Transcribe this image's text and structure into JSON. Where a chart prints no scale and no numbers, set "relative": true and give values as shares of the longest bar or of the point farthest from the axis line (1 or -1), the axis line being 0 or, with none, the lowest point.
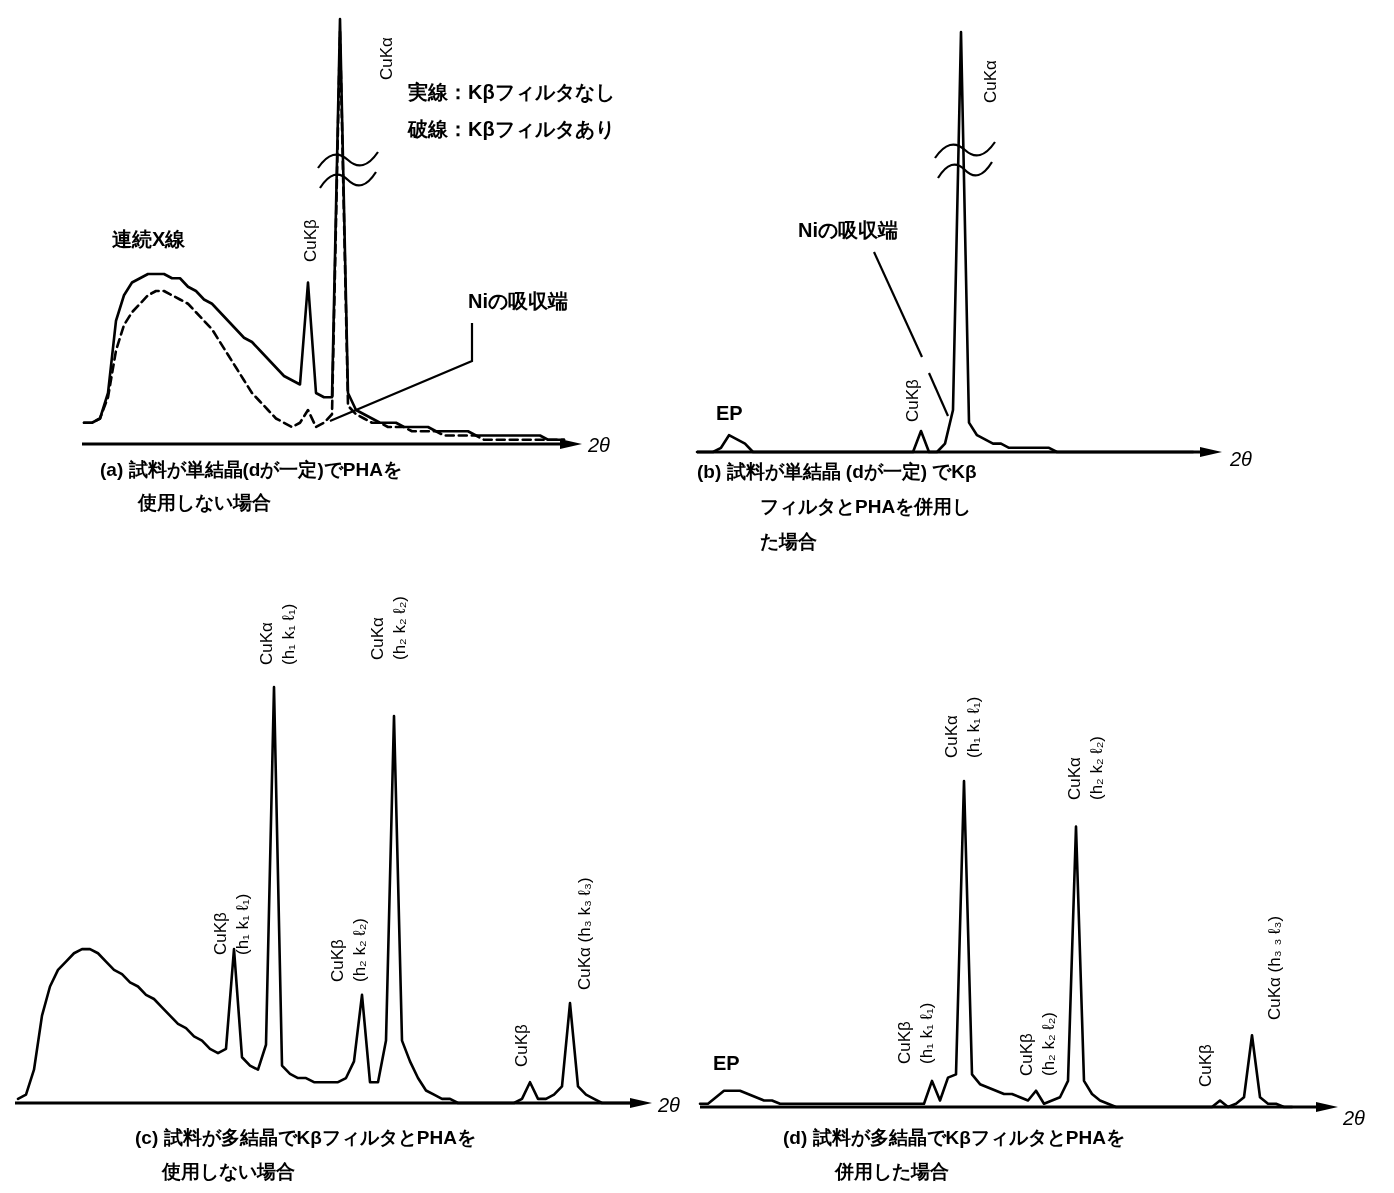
{
  "chart_data": [
    {
      "type": "line",
      "title": "(a) 試料が単結晶(dが一定)でPHAを使用しない場合",
      "xlabel": "2θ",
      "relative": true,
      "categories": [
        null,
        null,
        null,
        null,
        null,
        null,
        null,
        null,
        null,
        null,
        null,
        null,
        null,
        null,
        null,
        null,
        null,
        null,
        null,
        null,
        null,
        null,
        null,
        null,
        null,
        null,
        null,
        null,
        null,
        null,
        null,
        null,
        null,
        null,
        null,
        null,
        null,
        null,
        null,
        null,
        null,
        null,
        null,
        null,
        null,
        null,
        null,
        null,
        null,
        null,
        null,
        null,
        null,
        null,
        null,
        null,
        null,
        null,
        null,
        null,
        null
      ],
      "series": [
        {
          "color": "#000000",
          "line_style": "solid",
          "values": [
            0.05,
            0.05,
            0.06,
            0.12,
            0.29,
            0.35,
            0.38,
            0.39,
            0.4,
            0.4,
            0.4,
            0.39,
            0.39,
            0.37,
            0.36,
            0.34,
            0.33,
            0.31,
            0.29,
            0.27,
            0.25,
            0.24,
            0.22,
            0.2,
            0.18,
            0.16,
            0.15,
            0.14,
            0.38,
            0.12,
            0.11,
            0.11,
            1,
            0.12,
            0.08,
            0.07,
            0.06,
            0.05,
            0.05,
            0.05,
            0.04,
            0.04,
            0.04,
            0.04,
            0.03,
            0.03,
            0.03,
            0.03,
            0.03,
            0.02,
            0.02,
            0.02,
            0.02,
            0.02,
            0.02,
            0.02,
            0.02,
            0.02,
            0.01,
            0.01,
            0.01
          ]
        },
        {
          "color": "#000000",
          "line_style": "dashed",
          "values": [
            0.05,
            0.05,
            0.06,
            0.11,
            0.22,
            0.28,
            0.31,
            0.33,
            0.35,
            0.36,
            0.36,
            0.35,
            0.34,
            0.33,
            0.31,
            0.29,
            0.27,
            0.24,
            0.21,
            0.18,
            0.15,
            0.12,
            0.1,
            0.08,
            0.06,
            0.05,
            0.04,
            0.05,
            0.08,
            0.04,
            0.05,
            0.07,
            0.97,
            0.09,
            0.07,
            0.06,
            0.05,
            0.05,
            0.04,
            0.04,
            0.04,
            0.03,
            0.03,
            0.03,
            0.03,
            0.02,
            0.02,
            0.02,
            0.02,
            0.02,
            0.01,
            0.01,
            0.01,
            0.01,
            0.01,
            0.01,
            0.01,
            0.01,
            0.01,
            0.01,
            0.01
          ]
        }
      ],
      "annotations": [
        "CuKα",
        "CuKβ",
        "連続X線",
        "Niの吸収端",
        "実線：Kβフィルタなし",
        "破線：Kβフィルタあり"
      ]
    },
    {
      "type": "line",
      "title": "(b) 試料が単結晶 (dが一定) でKβフィルタとPHAを併用した場合",
      "xlabel": "2θ",
      "relative": true,
      "categories": [
        null,
        null,
        null,
        null,
        null,
        null,
        null,
        null,
        null,
        null,
        null,
        null,
        null,
        null,
        null,
        null,
        null,
        null,
        null,
        null,
        null,
        null,
        null,
        null,
        null,
        null,
        null,
        null,
        null,
        null,
        null,
        null,
        null,
        null,
        null,
        null,
        null,
        null,
        null,
        null,
        null,
        null,
        null,
        null,
        null,
        null,
        null,
        null,
        null,
        null,
        null,
        null,
        null,
        null,
        null,
        null,
        null,
        null,
        null,
        null,
        null,
        null,
        null
      ],
      "series": [
        {
          "color": "#000000",
          "line_style": "solid",
          "values": [
            0,
            0,
            0,
            0.01,
            0.04,
            0.03,
            0.02,
            0,
            0,
            0,
            0,
            0,
            0,
            0,
            0,
            0,
            0,
            0,
            0,
            0,
            0,
            0,
            0,
            0,
            0,
            0,
            0,
            0,
            0.05,
            0,
            0,
            0.02,
            0.1,
            1,
            0.07,
            0.04,
            0.03,
            0.02,
            0.02,
            0.01,
            0.01,
            0.01,
            0.01,
            0.01,
            0.01,
            0,
            0,
            0,
            0,
            0,
            0,
            0,
            0,
            0,
            0,
            0,
            0,
            0,
            0,
            0,
            0,
            0,
            0
          ]
        }
      ],
      "annotations": [
        "CuKα",
        "Niの吸収端",
        "CuKβ",
        "EP"
      ]
    },
    {
      "type": "line",
      "title": "(c) 試料が多結晶でKβフィルタとPHAを使用しない場合",
      "xlabel": "2θ",
      "relative": true,
      "categories": [
        null,
        null,
        null,
        null,
        null,
        null,
        null,
        null,
        null,
        null,
        null,
        null,
        null,
        null,
        null,
        null,
        null,
        null,
        null,
        null,
        null,
        null,
        null,
        null,
        null,
        null,
        null,
        null,
        null,
        null,
        null,
        null,
        null,
        null,
        null,
        null,
        null,
        null,
        null,
        null,
        null,
        null,
        null,
        null,
        null,
        null,
        null,
        null,
        null,
        null,
        null,
        null,
        null,
        null,
        null,
        null,
        null,
        null,
        null,
        null,
        null,
        null,
        null,
        null,
        null,
        null,
        null,
        null,
        null,
        null,
        null,
        null,
        null,
        null,
        null,
        null,
        null,
        null,
        null
      ],
      "series": [
        {
          "color": "#000000",
          "line_style": "solid",
          "values": [
            0.01,
            0.02,
            0.08,
            0.21,
            0.28,
            0.32,
            0.34,
            0.36,
            0.37,
            0.37,
            0.36,
            0.34,
            0.32,
            0.31,
            0.29,
            0.28,
            0.26,
            0.25,
            0.23,
            0.21,
            0.19,
            0.18,
            0.16,
            0.15,
            0.13,
            0.12,
            0.13,
            0.37,
            0.11,
            0.09,
            0.08,
            0.14,
            1,
            0.09,
            0.07,
            0.06,
            0.06,
            0.05,
            0.05,
            0.05,
            0.05,
            0.06,
            0.1,
            0.26,
            0.05,
            0.05,
            0.15,
            0.93,
            0.15,
            0.1,
            0.06,
            0.03,
            0.02,
            0.01,
            0.01,
            0,
            0,
            0,
            0,
            0,
            0,
            0,
            0,
            0.01,
            0.05,
            0.01,
            0.01,
            0.02,
            0.04,
            0.24,
            0.04,
            0.02,
            0.01,
            0,
            0,
            0,
            0,
            0,
            0
          ]
        }
      ],
      "annotations": [
        "CuKβ\n(h₁ k₁ ℓ₁)",
        "CuKα\n(h₁ k₁ ℓ₁)",
        "CuKβ\n(h₂ k₂ ℓ₂)",
        "CuKα\n(h₂ k₂ ℓ₂)",
        "CuKβ",
        "CuKα (h₃ k₃ ℓ₃)"
      ]
    },
    {
      "type": "line",
      "title": "(d) 試料が多結晶でKβフィルタとPHAを併用した場合",
      "xlabel": "2θ",
      "relative": true,
      "categories": [
        null,
        null,
        null,
        null,
        null,
        null,
        null,
        null,
        null,
        null,
        null,
        null,
        null,
        null,
        null,
        null,
        null,
        null,
        null,
        null,
        null,
        null,
        null,
        null,
        null,
        null,
        null,
        null,
        null,
        null,
        null,
        null,
        null,
        null,
        null,
        null,
        null,
        null,
        null,
        null,
        null,
        null,
        null,
        null,
        null,
        null,
        null,
        null,
        null,
        null,
        null,
        null,
        null,
        null,
        null,
        null,
        null,
        null,
        null,
        null,
        null,
        null,
        null,
        null,
        null,
        null,
        null,
        null,
        null,
        null,
        null,
        null,
        null,
        null,
        null
      ],
      "series": [
        {
          "color": "#000000",
          "line_style": "solid",
          "values": [
            0.01,
            0.01,
            0.03,
            0.05,
            0.05,
            0.05,
            0.04,
            0.03,
            0.02,
            0.02,
            0.01,
            0.01,
            0.01,
            0.01,
            0.01,
            0.01,
            0.01,
            0.01,
            0.01,
            0.01,
            0.01,
            0.01,
            0.01,
            0.01,
            0.01,
            0.01,
            0.01,
            0.01,
            0.01,
            0.08,
            0.02,
            0.09,
            0.1,
            1,
            0.1,
            0.07,
            0.06,
            0.05,
            0.04,
            0.04,
            0.03,
            0.02,
            0.05,
            0.01,
            0.02,
            0.03,
            0.08,
            0.86,
            0.08,
            0.04,
            0.02,
            0.01,
            0,
            0,
            0,
            0,
            0,
            0,
            0,
            0,
            0,
            0,
            0,
            0,
            0,
            0.02,
            0,
            0.01,
            0.03,
            0.22,
            0.03,
            0.01,
            0.01,
            0,
            0
          ]
        }
      ],
      "annotations": [
        "EP",
        "CuKβ\n(h₁ k₁ ℓ₁)",
        "CuKα\n(h₁ k₁ ℓ₁)",
        "CuKβ\n(h₂ k₂ ℓ₂)",
        "CuKα\n(h₂ k₂ ℓ₂)",
        "CuKβ",
        "CuKα (h₃  ₃ ℓ₃)"
      ]
    }
  ]
}
